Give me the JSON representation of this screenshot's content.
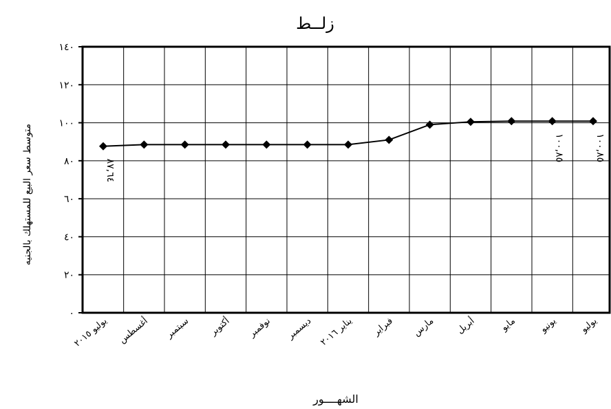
{
  "chart_data": {
    "type": "line",
    "title": "زلــط",
    "xlabel": "الشهــــور",
    "ylabel": "متوسط سعر البيع للمستهلك بالجنيه",
    "categories": [
      "يوليو ٢٠١٥",
      "أغسطس",
      "سبتمبر",
      "أكتوبر",
      "نوفمبر",
      "ديسمبر",
      "يناير ٢٠١٦",
      "فبراير",
      "مارس",
      "أبريل",
      "مايو",
      "يونيو",
      "يوليو"
    ],
    "series": [
      {
        "values": [
          87.64,
          88.5,
          88.5,
          88.5,
          88.5,
          88.5,
          88.5,
          91.0,
          99.0,
          100.5,
          100.85,
          100.85,
          100.85
        ]
      }
    ],
    "ylim": [
      0,
      140
    ],
    "yticks": [
      "٠",
      "٢٠",
      "٤٠",
      "٦٠",
      "٨٠",
      "١٠٠",
      "١٢٠",
      "١٤٠"
    ],
    "data_labels": [
      {
        "index": 0,
        "text": "٨٧,٦٤"
      },
      {
        "index": 11,
        "text": "١٠٠,٨٥"
      },
      {
        "index": 12,
        "text": "١٠٠,٨٥"
      }
    ],
    "grid": true,
    "legend": "none"
  }
}
